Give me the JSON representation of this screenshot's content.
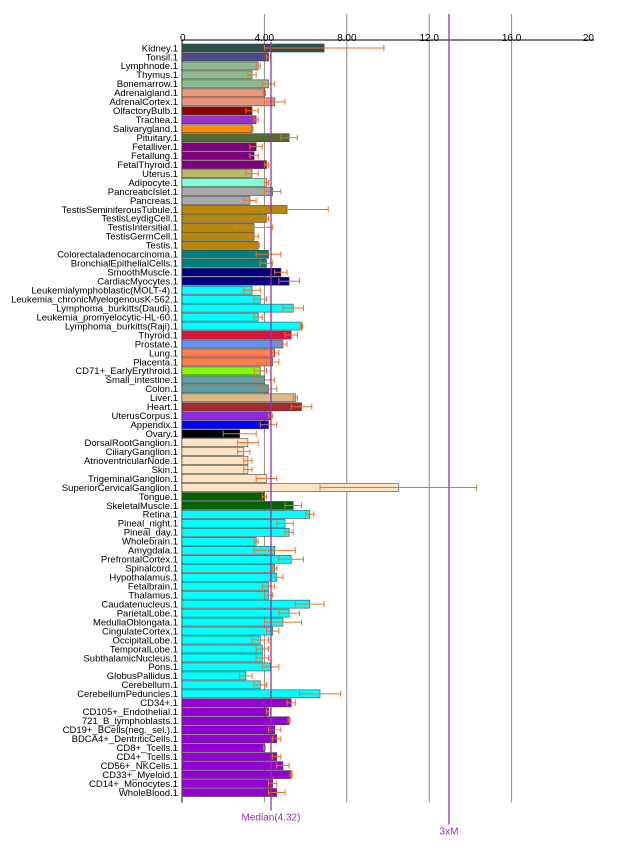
{
  "chart_data": {
    "type": "bar",
    "orientation": "horizontal",
    "xlim": [
      0,
      20
    ],
    "xticks": [
      0,
      4,
      8,
      12,
      16,
      20
    ],
    "xtick_labels": [
      "0",
      "4.00",
      "8.00",
      "12.0",
      "16.0",
      "20"
    ],
    "grid": true,
    "median": {
      "value": 4.32,
      "label": "Median(4.32)",
      "color": "#9a2fb0"
    },
    "three_x_median": {
      "value": 12.96,
      "label": "3xM",
      "color": "#9a2fb0"
    },
    "error_color": "#e8742a",
    "bars": [
      {
        "label": "Kidney.1",
        "value": 6.9,
        "err": 2.9,
        "color": "#2f4f4f"
      },
      {
        "label": "Tonsil.1",
        "value": 4.2,
        "err": 0.1,
        "color": "#4a4a8a"
      },
      {
        "label": "Lymphnode.1",
        "value": 3.7,
        "err": 0.1,
        "color": "#8fbc8f"
      },
      {
        "label": "Thymus.1",
        "value": 3.4,
        "err": 0.2,
        "color": "#8fbc8f"
      },
      {
        "label": "Bonemarrow.1",
        "value": 4.2,
        "err": 0.3,
        "color": "#8fbc8f"
      },
      {
        "label": "Adrenalgland.1",
        "value": 4.0,
        "err": 0.05,
        "color": "#e9967a"
      },
      {
        "label": "AdrenalCortex.1",
        "value": 4.5,
        "err": 0.5,
        "color": "#e9967a"
      },
      {
        "label": "OlfactoryBulb.1",
        "value": 3.4,
        "err": 0.3,
        "color": "#8b0000"
      },
      {
        "label": "Trachea.1",
        "value": 3.6,
        "err": 0.1,
        "color": "#9932cc"
      },
      {
        "label": "Salivarygland.1",
        "value": 3.4,
        "err": 0.05,
        "color": "#ff8c00"
      },
      {
        "label": "Pituitary.1",
        "value": 5.2,
        "err": 0.4,
        "color": "#556b2f"
      },
      {
        "label": "Fetalliver.1",
        "value": 3.6,
        "err": 0.3,
        "color": "#800080"
      },
      {
        "label": "Fetallung.1",
        "value": 3.5,
        "err": 0.2,
        "color": "#800080"
      },
      {
        "label": "FetalThyroid.1",
        "value": 4.1,
        "err": 0.1,
        "color": "#800080"
      },
      {
        "label": "Uterus.1",
        "value": 3.4,
        "err": 0.3,
        "color": "#bdb76b"
      },
      {
        "label": "Adipocyte.1",
        "value": 4.1,
        "err": 0.1,
        "color": "#7fffd4"
      },
      {
        "label": "PancreaticIslet.1",
        "value": 4.4,
        "err": 0.4,
        "color": "#a9a9a9"
      },
      {
        "label": "Pancreas.1",
        "value": 3.3,
        "err": 0.3,
        "color": "#a9a9a9"
      },
      {
        "label": "TestisSeminiferousTubule.1",
        "value": 5.1,
        "err": 2.0,
        "color": "#b8860b"
      },
      {
        "label": "TestisLeydigCell.1",
        "value": 4.1,
        "err": 0.1,
        "color": "#b8860b"
      },
      {
        "label": "TestisIntersitial.1",
        "value": 3.5,
        "err": 0.9,
        "color": "#b8860b"
      },
      {
        "label": "TestisGermCell.1",
        "value": 3.5,
        "err": 0.2,
        "color": "#b8860b"
      },
      {
        "label": "Testis.1",
        "value": 3.7,
        "err": 0.05,
        "color": "#b8860b"
      },
      {
        "label": "Colorectaladenocarcinoma.1",
        "value": 4.2,
        "err": 0.6,
        "color": "#008080"
      },
      {
        "label": "BronchialEpithelialCells.1",
        "value": 4.1,
        "err": 0.3,
        "color": "#008080"
      },
      {
        "label": "SmoothMuscle.1",
        "value": 4.8,
        "err": 0.3,
        "color": "#000080"
      },
      {
        "label": "CardiacMyocytes.1",
        "value": 5.2,
        "err": 0.5,
        "color": "#000080"
      },
      {
        "label": "Leukemialymphoblastic(MOLT-4).1",
        "value": 3.4,
        "err": 0.4,
        "color": "#00ffff"
      },
      {
        "label": "Leukemia_chronicMyelogenousK-562.1",
        "value": 3.8,
        "err": 0.3,
        "color": "#00ffff"
      },
      {
        "label": "Lymphoma_burkitts(Daudi).1",
        "value": 5.4,
        "err": 0.5,
        "color": "#00ffff"
      },
      {
        "label": "Leukemia_promyelocytic-HL-60.1",
        "value": 3.7,
        "err": 0.2,
        "color": "#00ffff"
      },
      {
        "label": "Lymphoma_burkitts(Raji).1",
        "value": 5.8,
        "err": 0.05,
        "color": "#00ffff"
      },
      {
        "label": "Thyroid.1",
        "value": 5.3,
        "err": 0.3,
        "color": "#dc143c"
      },
      {
        "label": "Prostate.1",
        "value": 4.9,
        "err": 0.2,
        "color": "#6495ed"
      },
      {
        "label": "Lung.1",
        "value": 4.5,
        "err": 0.2,
        "color": "#ff7f50"
      },
      {
        "label": "Placenta.1",
        "value": 4.4,
        "err": 0.3,
        "color": "#ff7f50"
      },
      {
        "label": "CD71+_EarlyErythroid.1",
        "value": 3.8,
        "err": 0.3,
        "color": "#7fff00"
      },
      {
        "label": "Small_intestine.1",
        "value": 4.0,
        "err": 0.5,
        "color": "#5f9ea0"
      },
      {
        "label": "Colon.1",
        "value": 4.2,
        "err": 0.4,
        "color": "#5f9ea0"
      },
      {
        "label": "Liver.1",
        "value": 5.5,
        "err": 0.1,
        "color": "#deb887"
      },
      {
        "label": "Heart.1",
        "value": 5.8,
        "err": 0.5,
        "color": "#a52a2a"
      },
      {
        "label": "UterusCorpus.1",
        "value": 4.3,
        "err": 0.1,
        "color": "#8a2be2"
      },
      {
        "label": "Appendix.1",
        "value": 4.2,
        "err": 0.4,
        "color": "#0000ff"
      },
      {
        "label": "Ovary.1",
        "value": 2.8,
        "err": 0.8,
        "color": "#000000"
      },
      {
        "label": "DorsalRootGanglion.1",
        "value": 3.2,
        "err": 0.5,
        "color": "#ffe4c4"
      },
      {
        "label": "CiliaryGanglion.1",
        "value": 3.0,
        "err": 0.3,
        "color": "#ffe4c4"
      },
      {
        "label": "AtrioventricularNode.1",
        "value": 3.2,
        "err": 0.2,
        "color": "#ffe4c4"
      },
      {
        "label": "Skin.1",
        "value": 3.2,
        "err": 0.2,
        "color": "#ffe4c4"
      },
      {
        "label": "TrigeminalGanglion.1",
        "value": 4.1,
        "err": 0.5,
        "color": "#ffe4c4"
      },
      {
        "label": "SuperiorCervicalGanglion.1",
        "value": 10.5,
        "err": 3.8,
        "color": "#ffe4c4"
      },
      {
        "label": "Tongue.1",
        "value": 4.0,
        "err": 0.1,
        "color": "#006400"
      },
      {
        "label": "SkeletalMuscle.1",
        "value": 5.4,
        "err": 0.4,
        "color": "#006400"
      },
      {
        "label": "Retina.1",
        "value": 6.2,
        "err": 0.2,
        "color": "#00ffff"
      },
      {
        "label": "Pineal_night.1",
        "value": 5.0,
        "err": 0.4,
        "color": "#00ffff"
      },
      {
        "label": "Pineal_day.1",
        "value": 5.2,
        "err": 0.2,
        "color": "#00ffff"
      },
      {
        "label": "Wholebrain.1",
        "value": 3.6,
        "err": 0.1,
        "color": "#00ffff"
      },
      {
        "label": "Amygdala.1",
        "value": 4.5,
        "err": 1.0,
        "color": "#00ffff"
      },
      {
        "label": "PrefrontalCortex.1",
        "value": 5.3,
        "err": 0.6,
        "color": "#00ffff"
      },
      {
        "label": "Spinalcord.1",
        "value": 4.5,
        "err": 0.1,
        "color": "#00ffff"
      },
      {
        "label": "Hypothalamus.1",
        "value": 4.6,
        "err": 0.3,
        "color": "#00ffff"
      },
      {
        "label": "Fetalbrain.1",
        "value": 4.2,
        "err": 0.3,
        "color": "#00ffff"
      },
      {
        "label": "Thalamus.1",
        "value": 4.2,
        "err": 0.2,
        "color": "#00ffff"
      },
      {
        "label": "Caudatenucleus.1",
        "value": 6.2,
        "err": 0.7,
        "color": "#00ffff"
      },
      {
        "label": "ParietalLobe.1",
        "value": 5.2,
        "err": 0.5,
        "color": "#00ffff"
      },
      {
        "label": "MedullaOblongata.1",
        "value": 4.9,
        "err": 0.9,
        "color": "#00ffff"
      },
      {
        "label": "CingulateCortex.1",
        "value": 4.4,
        "err": 0.3,
        "color": "#00ffff"
      },
      {
        "label": "OccipitalLobe.1",
        "value": 3.8,
        "err": 0.4,
        "color": "#00ffff"
      },
      {
        "label": "TemporalLobe.1",
        "value": 3.9,
        "err": 0.3,
        "color": "#00ffff"
      },
      {
        "label": "SubthalamicNucleus.1",
        "value": 3.9,
        "err": 0.3,
        "color": "#00ffff"
      },
      {
        "label": "Pons.1",
        "value": 4.3,
        "err": 0.4,
        "color": "#00ffff"
      },
      {
        "label": "GlobusPallidus.1",
        "value": 3.1,
        "err": 0.3,
        "color": "#00ffff"
      },
      {
        "label": "Cerebellum.1",
        "value": 3.8,
        "err": 0.3,
        "color": "#00ffff"
      },
      {
        "label": "CerebellumPeduncles.1",
        "value": 6.7,
        "err": 1.0,
        "color": "#00ffff"
      },
      {
        "label": "CD34+.1",
        "value": 5.3,
        "err": 0.2,
        "color": "#9400d3"
      },
      {
        "label": "CD105+_Endothelial.1",
        "value": 4.2,
        "err": 0.1,
        "color": "#9400d3"
      },
      {
        "label": "721_B_lymphoblasts.1",
        "value": 5.2,
        "err": 0.05,
        "color": "#9400d3"
      },
      {
        "label": "CD19+_BCells(neg._sel.).1",
        "value": 4.5,
        "err": 0.3,
        "color": "#9400d3"
      },
      {
        "label": "BDCA4+_DentriticCells.1",
        "value": 4.6,
        "err": 0.2,
        "color": "#9400d3"
      },
      {
        "label": "CD8+_Tcells.1",
        "value": 4.0,
        "err": 0.05,
        "color": "#9400d3"
      },
      {
        "label": "CD4+_Tcells.1",
        "value": 4.6,
        "err": 0.2,
        "color": "#9400d3"
      },
      {
        "label": "CD56+_NKCells.1",
        "value": 4.9,
        "err": 0.3,
        "color": "#9400d3"
      },
      {
        "label": "CD33+_Myeloid.1",
        "value": 5.3,
        "err": 0.05,
        "color": "#9400d3"
      },
      {
        "label": "CD14+_Monocytes.1",
        "value": 4.4,
        "err": 0.2,
        "color": "#9400d3"
      },
      {
        "label": "WholeBlood.1",
        "value": 4.6,
        "err": 0.4,
        "color": "#9400d3"
      }
    ]
  }
}
